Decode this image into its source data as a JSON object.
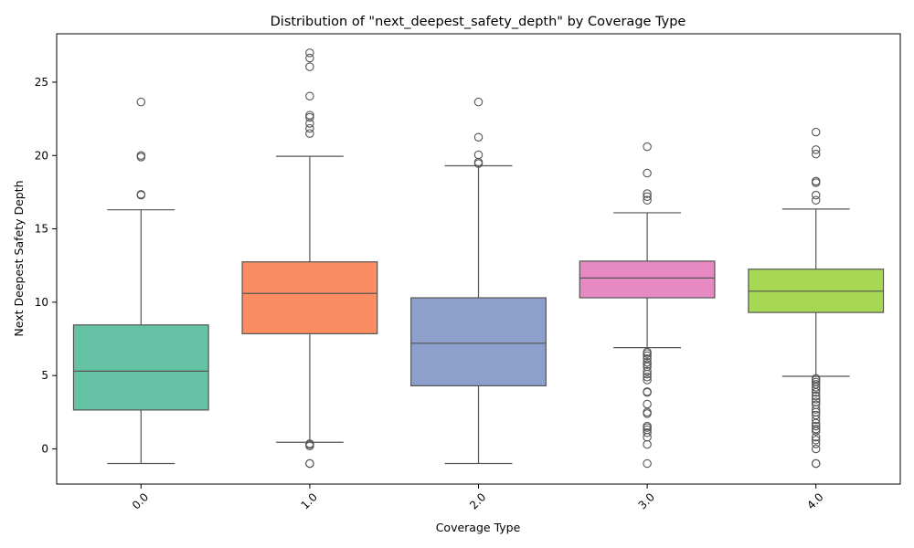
{
  "chart_data": {
    "type": "box",
    "title": "Distribution of \"next_deepest_safety_depth\" by Coverage Type",
    "xlabel": "Coverage Type",
    "ylabel": "Next Deepest Safety Depth",
    "categories": [
      "0.0",
      "1.0",
      "2.0",
      "3.0",
      "4.0"
    ],
    "ylim": [
      -2.4,
      28.3
    ],
    "yticks": [
      0,
      5,
      10,
      15,
      20,
      25
    ],
    "x_tick_rotation": 45,
    "grid": false,
    "legend": "none",
    "series": [
      {
        "category": "0.0",
        "color": "#66c2a5",
        "whisker_low": -1.0,
        "q1": 2.65,
        "median": 5.3,
        "q3": 8.45,
        "whisker_high": 16.3,
        "outliers": [
          17.3,
          17.35,
          19.9,
          20.0,
          23.65
        ]
      },
      {
        "category": "1.0",
        "color": "#fc8d62",
        "whisker_low": 0.45,
        "q1": 7.85,
        "median": 10.6,
        "q3": 12.75,
        "whisker_high": 19.95,
        "outliers": [
          -1.0,
          -1.0,
          0.2,
          0.3,
          0.35,
          21.5,
          21.85,
          22.2,
          22.6,
          22.75,
          24.05,
          26.05,
          26.65,
          27.0
        ]
      },
      {
        "category": "2.0",
        "color": "#8da0cb",
        "whisker_low": -1.0,
        "q1": 4.3,
        "median": 7.2,
        "q3": 10.3,
        "whisker_high": 19.3,
        "outliers": [
          19.45,
          19.55,
          20.05,
          21.25,
          23.65
        ]
      },
      {
        "category": "3.0",
        "color": "#e78ac3",
        "whisker_low": 6.9,
        "q1": 10.3,
        "median": 11.65,
        "q3": 12.8,
        "whisker_high": 16.1,
        "outliers": [
          -1.0,
          0.3,
          0.8,
          1.1,
          1.3,
          1.45,
          1.55,
          2.4,
          2.5,
          3.05,
          3.85,
          3.9,
          4.7,
          4.9,
          5.1,
          5.3,
          5.6,
          5.75,
          5.9,
          6.15,
          6.35,
          6.5,
          6.6,
          16.95,
          17.2,
          17.4,
          18.8,
          20.6
        ]
      },
      {
        "category": "4.0",
        "color": "#a6d854",
        "whisker_low": 4.95,
        "q1": 9.3,
        "median": 10.75,
        "q3": 12.25,
        "whisker_high": 16.35,
        "outliers": [
          -1.0,
          -1.0,
          0.0,
          0.35,
          0.6,
          0.8,
          1.2,
          1.35,
          1.55,
          1.75,
          2.0,
          2.3,
          2.5,
          2.7,
          3.0,
          3.2,
          3.4,
          3.6,
          3.85,
          4.05,
          4.2,
          4.4,
          4.55,
          4.7,
          4.8,
          16.95,
          17.3,
          18.15,
          18.25,
          20.1,
          20.4,
          21.6
        ]
      }
    ]
  }
}
